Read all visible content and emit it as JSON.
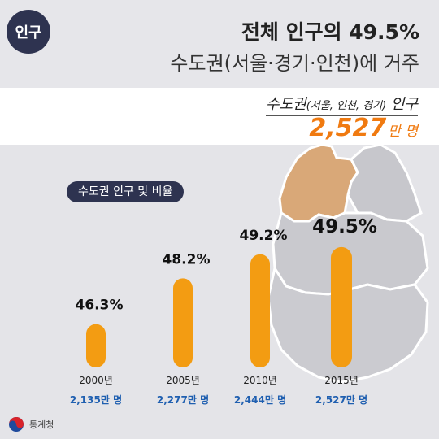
{
  "header": {
    "badge": "인구",
    "title_line1": "전체 인구의 49.5%",
    "title_line2": "수도권(서울·경기·인천)에 거주"
  },
  "highlight": {
    "label_main": "수도권",
    "label_paren": "(서울, 인천, 경기)",
    "label_tail": " 인구",
    "value": "2,527",
    "unit": "만 명"
  },
  "legend_pill": "수도권 인구 및 비율",
  "footer": {
    "logo_text": "통계청"
  },
  "colors": {
    "bar": "#f39c12",
    "accent": "#f07a10",
    "navy": "#2e3350",
    "blue_label": "#1f5fb0",
    "capital_area": "#d9a878"
  },
  "chart_data": {
    "type": "bar",
    "categories": [
      "2000년",
      "2005년",
      "2010년",
      "2015년"
    ],
    "series": [
      {
        "values": [
          46.3,
          48.2,
          49.2,
          49.5
        ]
      }
    ],
    "value_labels": [
      "46.3%",
      "48.2%",
      "49.2%",
      "49.5%"
    ],
    "population_labels": [
      "2,135만 명",
      "2,277만 명",
      "2,444만 명",
      "2,527만 명"
    ],
    "population_values": [
      2135,
      2277,
      2444,
      2527
    ],
    "ylim": [
      44.5,
      49.8
    ],
    "grid": false,
    "legend": "none"
  }
}
